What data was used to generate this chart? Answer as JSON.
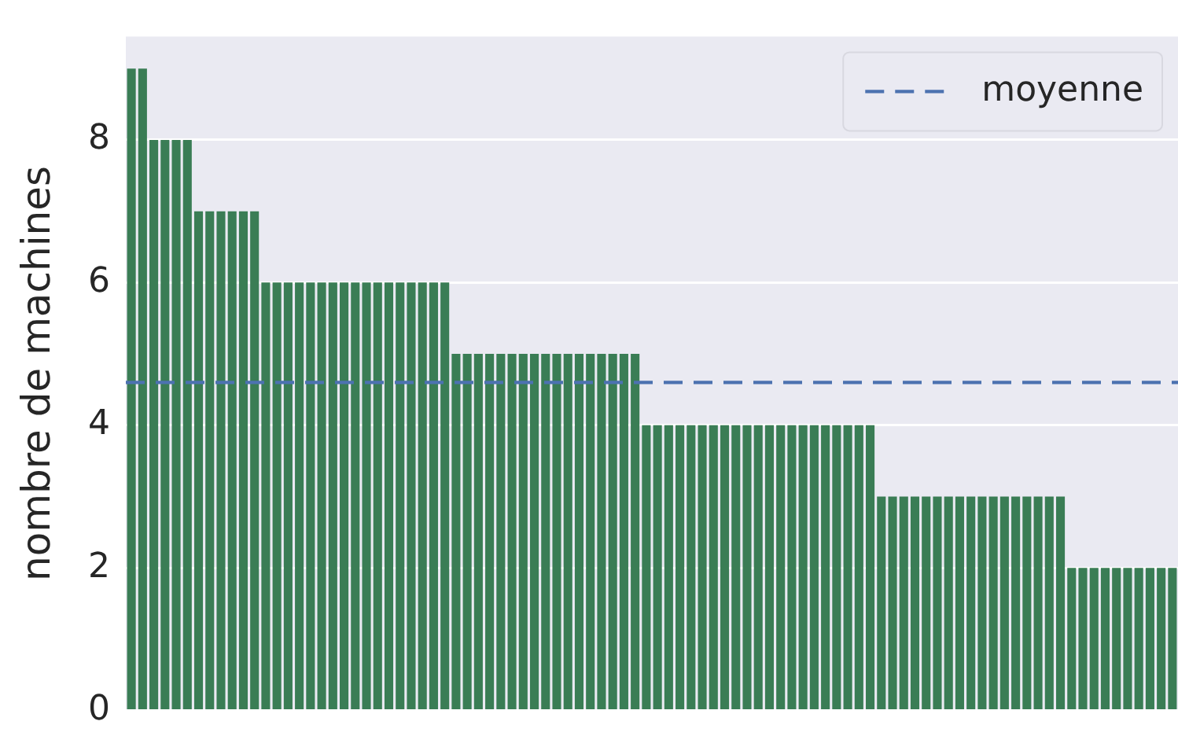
{
  "chart_data": {
    "type": "bar",
    "ylabel": "nombre de machines",
    "categories": [
      null,
      null,
      null,
      null,
      null,
      null,
      null,
      null,
      null,
      null,
      null,
      null,
      null,
      null,
      null,
      null,
      null,
      null,
      null,
      null,
      null,
      null,
      null,
      null,
      null,
      null,
      null,
      null,
      null,
      null,
      null,
      null,
      null,
      null,
      null,
      null,
      null,
      null,
      null,
      null,
      null,
      null,
      null,
      null,
      null,
      null,
      null,
      null,
      null,
      null,
      null,
      null,
      null,
      null,
      null,
      null,
      null,
      null,
      null,
      null,
      null,
      null,
      null,
      null,
      null,
      null,
      null,
      null,
      null,
      null,
      null,
      null,
      null,
      null,
      null,
      null,
      null,
      null,
      null,
      null,
      null,
      null,
      null,
      null,
      null,
      null,
      null,
      null,
      null,
      null,
      null,
      null,
      null,
      null
    ],
    "values": [
      9,
      9,
      8,
      8,
      8,
      8,
      7,
      7,
      7,
      7,
      7,
      7,
      6,
      6,
      6,
      6,
      6,
      6,
      6,
      6,
      6,
      6,
      6,
      6,
      6,
      6,
      6,
      6,
      6,
      5,
      5,
      5,
      5,
      5,
      5,
      5,
      5,
      5,
      5,
      5,
      5,
      5,
      5,
      5,
      5,
      5,
      4,
      4,
      4,
      4,
      4,
      4,
      4,
      4,
      4,
      4,
      4,
      4,
      4,
      4,
      4,
      4,
      4,
      4,
      4,
      4,
      4,
      3,
      3,
      3,
      3,
      3,
      3,
      3,
      3,
      3,
      3,
      3,
      3,
      3,
      3,
      3,
      3,
      3,
      2,
      2,
      2,
      2,
      2,
      2,
      2,
      2,
      2,
      2
    ],
    "color": "#3a7d55",
    "ylim": [
      0,
      9.45
    ],
    "yticks": [
      0,
      2,
      4,
      6,
      8
    ],
    "grid": "y",
    "ref_lines": [
      {
        "axis": "y",
        "value": 4.6,
        "label": "moyenne",
        "color": "#4c72b0",
        "line_style": "dashed"
      }
    ],
    "legend": "top right"
  }
}
